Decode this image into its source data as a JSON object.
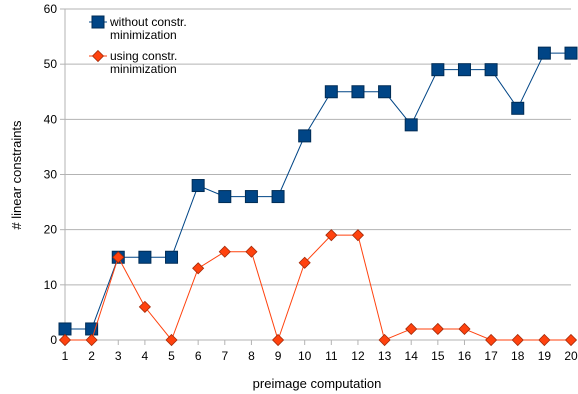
{
  "chart_data": {
    "type": "line",
    "xlabel": "preimage computation",
    "ylabel": "# linear constraints",
    "x": [
      1,
      2,
      3,
      4,
      5,
      6,
      7,
      8,
      9,
      10,
      11,
      12,
      13,
      14,
      15,
      16,
      17,
      18,
      19,
      20
    ],
    "ylim": [
      0,
      60
    ],
    "yticks": [
      0,
      10,
      20,
      30,
      40,
      50,
      60
    ],
    "grid": true,
    "legend_position": "top-left",
    "series": [
      {
        "name": "without constr. minimization",
        "name_lines": [
          "without constr.",
          "minimization"
        ],
        "color": "#004586",
        "marker": "square",
        "values": [
          2,
          2,
          15,
          15,
          15,
          28,
          26,
          26,
          26,
          37,
          45,
          45,
          45,
          39,
          49,
          49,
          49,
          42,
          52,
          52
        ]
      },
      {
        "name": "using constr. minimization",
        "name_lines": [
          "using constr.",
          "minimization"
        ],
        "color": "#ff420e",
        "marker": "diamond",
        "values": [
          0,
          0,
          15,
          6,
          0,
          13,
          16,
          16,
          0,
          14,
          19,
          19,
          0,
          2,
          2,
          2,
          0,
          0,
          0,
          0
        ]
      }
    ]
  }
}
